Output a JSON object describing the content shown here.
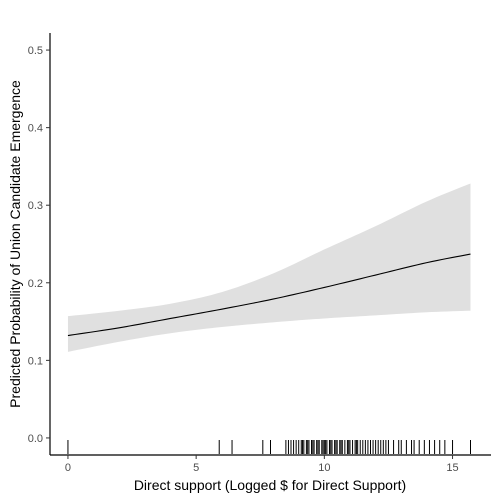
{
  "chart_data": {
    "type": "line",
    "title": "",
    "xlabel": "Direct support (Logged $ for Direct Support)",
    "ylabel": "Predicted Probability of Union Candidate Emergence",
    "xlim": [
      -0.7,
      16.5
    ],
    "ylim": [
      -0.022,
      0.522
    ],
    "x_ticks": [
      0,
      5,
      10,
      15
    ],
    "y_ticks": [
      0.0,
      0.1,
      0.2,
      0.3,
      0.4,
      0.5
    ],
    "x_tick_labels": [
      "0",
      "5",
      "10",
      "15"
    ],
    "y_tick_labels": [
      "0.0",
      "0.1",
      "0.2",
      "0.3",
      "0.4",
      "0.5"
    ],
    "grid": false,
    "legend": "none",
    "line_color": "#000000",
    "band_color": "#e0e0e0",
    "series": [
      {
        "x": [
          0,
          2,
          4,
          6,
          8,
          10,
          12,
          14,
          15.7
        ],
        "values": [
          0.132,
          0.142,
          0.154,
          0.166,
          0.179,
          0.194,
          0.21,
          0.226,
          0.237
        ],
        "lower": [
          0.111,
          0.124,
          0.135,
          0.143,
          0.149,
          0.154,
          0.158,
          0.162,
          0.164
        ],
        "upper": [
          0.157,
          0.164,
          0.173,
          0.188,
          0.212,
          0.243,
          0.273,
          0.305,
          0.328
        ]
      }
    ],
    "rug": [
      0,
      5.9,
      6.4,
      7.6,
      7.9,
      8.5,
      8.6,
      8.7,
      8.8,
      8.9,
      9.0,
      9.1,
      9.15,
      9.2,
      9.3,
      9.35,
      9.4,
      9.5,
      9.55,
      9.6,
      9.7,
      9.75,
      9.8,
      9.9,
      9.95,
      10.0,
      10.05,
      10.1,
      10.2,
      10.25,
      10.3,
      10.4,
      10.45,
      10.5,
      10.6,
      10.65,
      10.7,
      10.8,
      10.9,
      10.95,
      11.0,
      11.1,
      11.2,
      11.25,
      11.3,
      11.4,
      11.5,
      11.6,
      11.7,
      11.8,
      11.9,
      12.0,
      12.1,
      12.2,
      12.3,
      12.4,
      12.5,
      12.7,
      12.9,
      13.0,
      13.2,
      13.4,
      13.5,
      13.7,
      13.9,
      14.1,
      14.3,
      14.5,
      14.7,
      15.0,
      15.7
    ]
  }
}
